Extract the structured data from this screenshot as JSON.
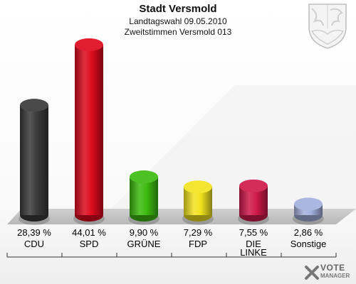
{
  "chart_data": {
    "type": "bar",
    "title": "Stadt Versmold",
    "subtitle": "Landtagswahl 09.05.2010",
    "subtitle2": "Zweitstimmen Versmold 013",
    "categories": [
      "CDU",
      "SPD",
      "GRÜNE",
      "FDP",
      "DIE LINKE",
      "Sonstige"
    ],
    "values": [
      28.39,
      44.01,
      9.9,
      7.29,
      7.55,
      2.86
    ],
    "value_labels": [
      "28,39 %",
      "44,01 %",
      "9,90 %",
      "7,29 %",
      "7,55 %",
      "2,86 %"
    ],
    "colors": [
      "#3a3a3a",
      "#dd0a1e",
      "#3dbb10",
      "#f2e320",
      "#d01a4a",
      "#a4b0de"
    ],
    "unit": "%"
  },
  "brand": {
    "line1": "VOTE",
    "line2": "MANAGER"
  }
}
